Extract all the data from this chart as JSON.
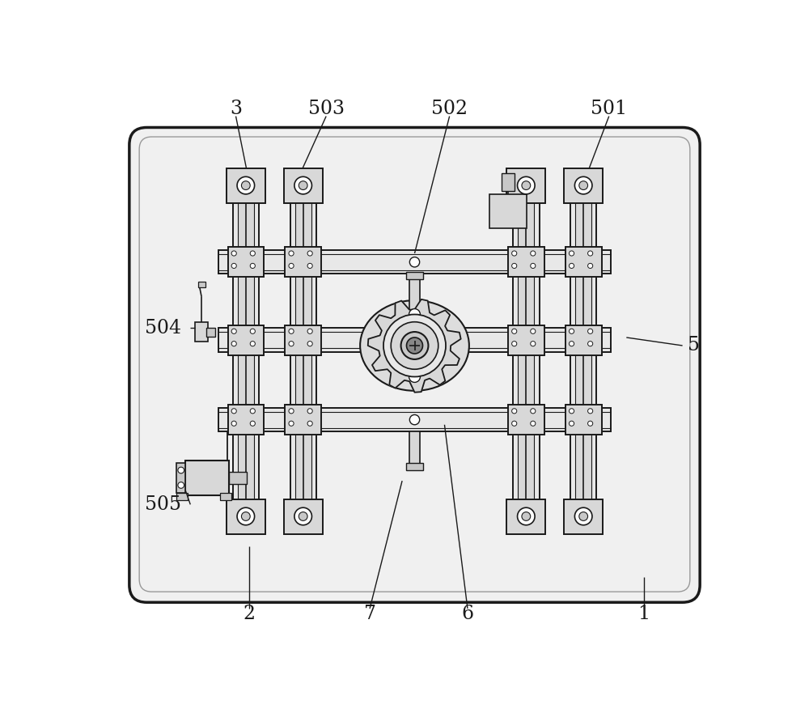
{
  "bg": "#f7f7f7",
  "white": "#ffffff",
  "lc": "#1a1a1a",
  "gray1": "#e8e8e8",
  "gray2": "#d8d8d8",
  "gray3": "#c8c8c8",
  "gray4": "#b8b8b8",
  "fig_w": 10.0,
  "fig_h": 8.76,
  "dpi": 100
}
